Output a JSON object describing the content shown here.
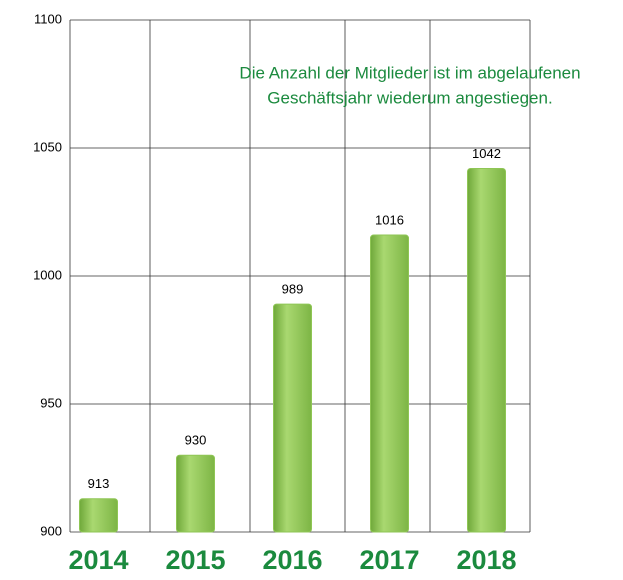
{
  "chart_data": {
    "type": "bar",
    "annotation": [
      "Die Anzahl der Mitglieder ist im abgelaufenen",
      "Geschäftsjahr wiederum angestiegen."
    ],
    "categories": [
      "2014",
      "2015",
      "2016",
      "2017",
      "2018"
    ],
    "values": [
      913,
      930,
      989,
      1016,
      1042
    ],
    "color": "#8fc655",
    "ylim": [
      900,
      1100
    ],
    "yticks": [
      900,
      950,
      1000,
      1050,
      1100
    ],
    "grid": true
  }
}
